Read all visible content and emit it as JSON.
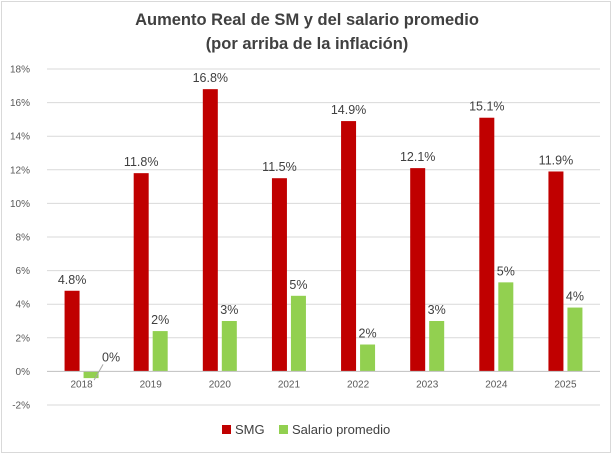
{
  "chart_data": {
    "type": "bar",
    "title_lines": [
      "Aumento  Real de SM y del salario promedio",
      "(por arriba de la inflación)"
    ],
    "categories": [
      "2018",
      "2019",
      "2020",
      "2021",
      "2022",
      "2023",
      "2024",
      "2025"
    ],
    "series": [
      {
        "name": "SMG",
        "color": "#c00000",
        "values": [
          4.8,
          11.8,
          16.8,
          11.5,
          14.9,
          12.1,
          15.1,
          11.9
        ],
        "labels": [
          "4.8%",
          "11.8%",
          "16.8%",
          "11.5%",
          "14.9%",
          "12.1%",
          "15.1%",
          "11.9%"
        ]
      },
      {
        "name": "Salario promedio",
        "color": "#92d050",
        "values": [
          -0.4,
          2.4,
          3.0,
          4.5,
          1.6,
          3.0,
          5.3,
          3.8
        ],
        "labels": [
          "0%",
          "2%",
          "3%",
          "5%",
          "2%",
          "3%",
          "5%",
          "4%"
        ]
      }
    ],
    "y_ticks": [
      -2,
      0,
      2,
      4,
      6,
      8,
      10,
      12,
      14,
      16,
      18
    ],
    "y_tick_labels": [
      "-2%",
      "0%",
      "2%",
      "4%",
      "6%",
      "8%",
      "10%",
      "12%",
      "14%",
      "16%",
      "18%"
    ],
    "ylim": [
      -2,
      18
    ],
    "grid": true,
    "legend_position": "bottom"
  }
}
